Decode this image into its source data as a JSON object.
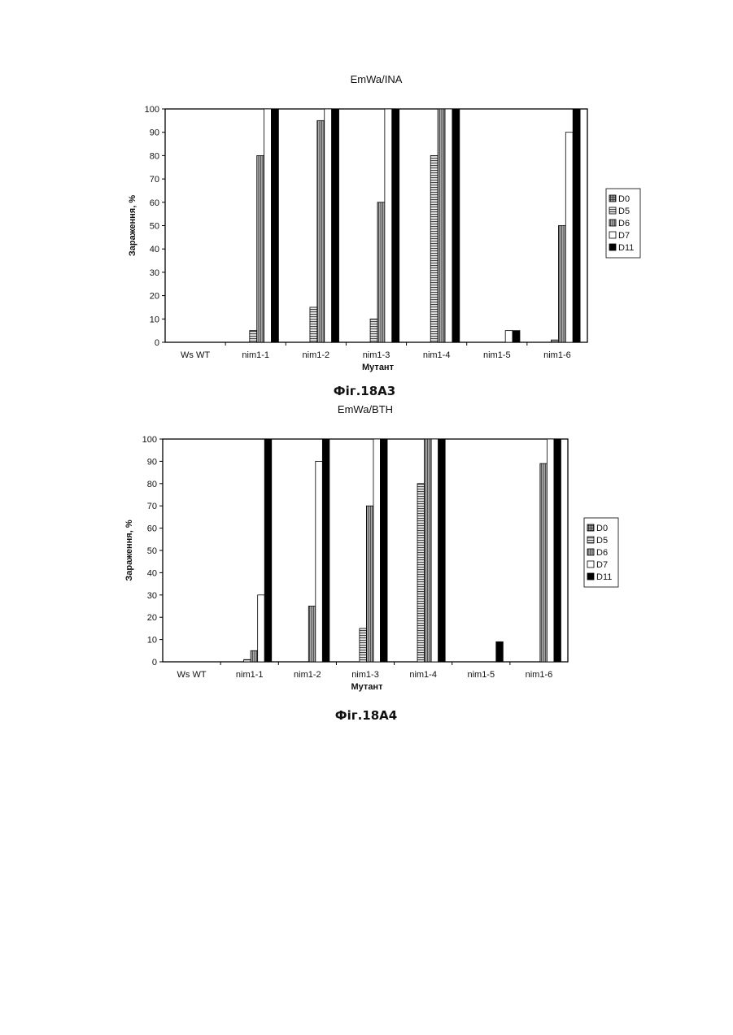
{
  "chart_data": [
    {
      "type": "bar",
      "title": "EmWa/INA",
      "caption": "Фіг.18А3",
      "xlabel": "Мутант",
      "ylabel": "Зараження, %",
      "ylim": [
        0,
        100
      ],
      "yticks": [
        0,
        10,
        20,
        30,
        40,
        50,
        60,
        70,
        80,
        90,
        100
      ],
      "grid": false,
      "legend_position": "right",
      "categories": [
        "Ws WT",
        "nim1-1",
        "nim1-2",
        "nim1-3",
        "nim1-4",
        "nim1-5",
        "nim1-6"
      ],
      "series": [
        {
          "name": "D0",
          "values": [
            0,
            0,
            0,
            0,
            0,
            0,
            0
          ]
        },
        {
          "name": "D5",
          "values": [
            0,
            5,
            15,
            10,
            80,
            0,
            1
          ]
        },
        {
          "name": "D6",
          "values": [
            0,
            80,
            95,
            60,
            100,
            0,
            50
          ]
        },
        {
          "name": "D7",
          "values": [
            0,
            100,
            100,
            100,
            100,
            5,
            90
          ]
        },
        {
          "name": "D11",
          "values": [
            0,
            100,
            100,
            100,
            100,
            5,
            100
          ]
        }
      ]
    },
    {
      "type": "bar",
      "title": "EmWa/BTH",
      "caption": "Фіг.18А4",
      "xlabel": "Мутант",
      "ylabel": "Зараження, %",
      "ylim": [
        0,
        100
      ],
      "yticks": [
        0,
        10,
        20,
        30,
        40,
        50,
        60,
        70,
        80,
        90,
        100
      ],
      "grid": false,
      "legend_position": "right",
      "categories": [
        "Ws WT",
        "nim1-1",
        "nim1-2",
        "nim1-3",
        "nim1-4",
        "nim1-5",
        "nim1-6"
      ],
      "series": [
        {
          "name": "D0",
          "values": [
            0,
            0,
            0,
            0,
            0,
            0,
            0
          ]
        },
        {
          "name": "D5",
          "values": [
            0,
            1,
            0,
            15,
            80,
            0,
            0
          ]
        },
        {
          "name": "D6",
          "values": [
            0,
            5,
            25,
            70,
            100,
            0,
            89
          ]
        },
        {
          "name": "D7",
          "values": [
            0,
            30,
            90,
            100,
            100,
            0,
            100
          ]
        },
        {
          "name": "D11",
          "values": [
            0,
            100,
            100,
            100,
            100,
            9,
            100
          ]
        }
      ]
    }
  ],
  "colors": {
    "D0": "#8c8c8c",
    "D5": "#bdbdbd",
    "D6": "#8f8f8f",
    "D7": "#ffffff",
    "D11": "#000000",
    "stroke": "#000000"
  }
}
